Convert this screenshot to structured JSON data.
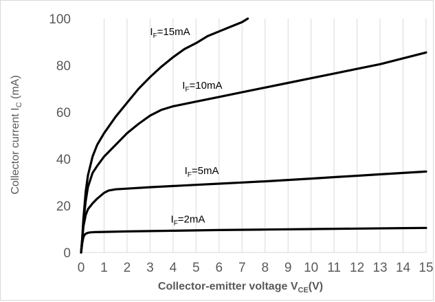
{
  "chart_data": {
    "type": "line",
    "title": "",
    "xlabel": {
      "main": "Collector-emitter voltage V",
      "sub": "CE",
      "suffix": "(V)"
    },
    "ylabel": {
      "main": "Collector current I",
      "sub": "C",
      "suffix": " (mA)"
    },
    "xlim": [
      0,
      15
    ],
    "ylim": [
      0,
      100
    ],
    "x_ticks": [
      0,
      1,
      2,
      3,
      4,
      5,
      6,
      7,
      8,
      9,
      10,
      11,
      12,
      13,
      14,
      15
    ],
    "y_ticks": [
      0,
      20,
      40,
      60,
      80,
      100
    ],
    "grid": {
      "vertical": true,
      "horizontal": false,
      "color": "#d9d9d9"
    },
    "legend": "none",
    "line_color": "#000000",
    "series": [
      {
        "label_main": "I",
        "label_sub": "F",
        "label_suffix": "=15mA",
        "label_at": [
          3.0,
          93
        ],
        "x": [
          0,
          0.05,
          0.1,
          0.2,
          0.3,
          0.5,
          0.7,
          1.0,
          1.5,
          2.0,
          2.5,
          3.0,
          3.5,
          4.0,
          4.5,
          5.0,
          5.5,
          6.0,
          6.5,
          7.0,
          7.25
        ],
        "y": [
          0,
          6,
          14,
          26,
          33,
          41,
          46,
          51,
          58,
          64,
          70,
          75,
          79.5,
          83.5,
          87,
          89.5,
          92.5,
          94.5,
          96.5,
          98.5,
          100
        ]
      },
      {
        "label_main": "I",
        "label_sub": "F",
        "label_suffix": "=10mA",
        "label_at": [
          4.4,
          70
        ],
        "x": [
          0,
          0.05,
          0.1,
          0.2,
          0.3,
          0.5,
          0.7,
          1.0,
          1.5,
          2.0,
          2.5,
          3.0,
          3.5,
          4.0,
          5.0,
          6.0,
          7.0,
          8.0,
          9.0,
          10.0,
          11.0,
          12.0,
          13.0,
          14.0,
          15.0
        ],
        "y": [
          0,
          6,
          13,
          22,
          28,
          34,
          37,
          41,
          46,
          51,
          55,
          58.5,
          61,
          62.5,
          64.5,
          66.5,
          68.5,
          70.5,
          72.5,
          74.5,
          76.5,
          78.5,
          80.5,
          83,
          85.5
        ]
      },
      {
        "label_main": "I",
        "label_sub": "F",
        "label_suffix": "=5mA",
        "label_at": [
          4.5,
          33.5
        ],
        "x": [
          0,
          0.05,
          0.1,
          0.2,
          0.3,
          0.5,
          0.7,
          1.0,
          1.2,
          1.5,
          2.0,
          3.0,
          4.0,
          5.0,
          6.0,
          7.0,
          8.0,
          9.0,
          10.0,
          11.0,
          12.0,
          13.0,
          14.0,
          15.0
        ],
        "y": [
          0,
          5,
          11,
          16,
          18.5,
          21,
          23,
          25.5,
          26.5,
          27,
          27.3,
          27.9,
          28.4,
          28.9,
          29.4,
          29.9,
          30.4,
          31,
          31.6,
          32.2,
          32.8,
          33.4,
          34,
          34.6
        ]
      },
      {
        "label_main": "I",
        "label_sub": "F",
        "label_suffix": "=2mA",
        "label_at": [
          3.9,
          12.8
        ],
        "x": [
          0,
          0.05,
          0.1,
          0.15,
          0.2,
          0.3,
          0.4,
          0.6,
          1.0,
          2.0,
          4.0,
          6.0,
          8.0,
          10.0,
          12.0,
          14.0,
          15.0
        ],
        "y": [
          0,
          4,
          6.5,
          7.5,
          8,
          8.4,
          8.6,
          8.7,
          8.8,
          9,
          9.3,
          9.6,
          9.8,
          10,
          10.2,
          10.4,
          10.5
        ]
      }
    ]
  }
}
